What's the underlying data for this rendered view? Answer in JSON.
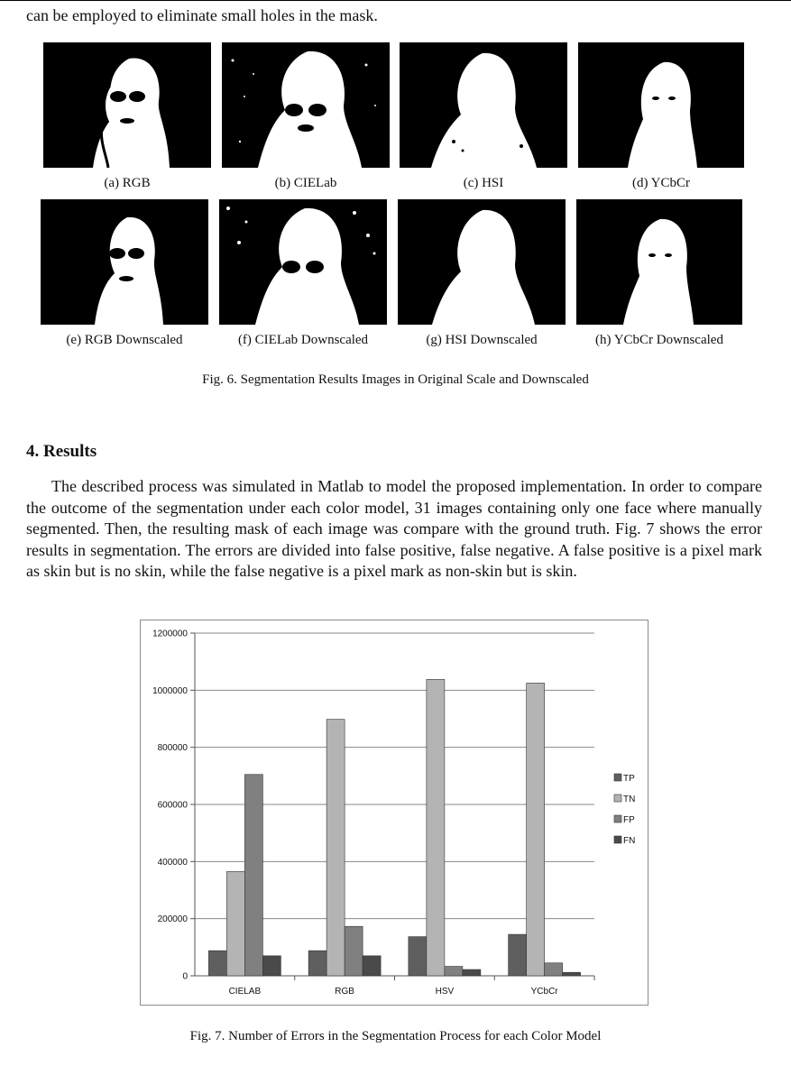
{
  "top_text": "can be employed to eliminate small holes in the mask.",
  "fig6": {
    "panels": [
      {
        "label": "(a) RGB"
      },
      {
        "label": "(b) CIELab"
      },
      {
        "label": "(c) HSI"
      },
      {
        "label": "(d) YCbCr"
      },
      {
        "label": "(e) RGB Downscaled"
      },
      {
        "label": "(f) CIELab Downscaled"
      },
      {
        "label": "(g) HSI Downscaled"
      },
      {
        "label": "(h) YCbCr Downscaled"
      }
    ],
    "caption": "Fig. 6. Segmentation Results Images in Original Scale and Downscaled"
  },
  "section": {
    "heading": "4. Results",
    "paragraph": "The described process was simulated in Matlab to model the proposed implementation. In order to compare the outcome of the segmentation under each color model, 31 images containing only one face where manually segmented. Then, the resulting mask of each image was compare with the ground truth. Fig. 7 shows the error results in segmentation. The errors are divided into false positive, false negative. A false positive is a pixel mark as skin but is no skin, while the false negative is a pixel mark as non-skin but is skin."
  },
  "fig7": {
    "caption": "Fig. 7. Number of Errors in the Segmentation Process for each Color Model"
  },
  "chart_data": {
    "type": "bar",
    "categories": [
      "CIELAB",
      "RGB",
      "HSV",
      "YCbCr"
    ],
    "series": [
      {
        "name": "TP",
        "color": "#5f5f5f",
        "values": [
          88000,
          88000,
          137000,
          145000
        ]
      },
      {
        "name": "TN",
        "color": "#b4b4b4",
        "values": [
          365000,
          898000,
          1038000,
          1025000
        ]
      },
      {
        "name": "FP",
        "color": "#808080",
        "values": [
          705000,
          173000,
          33000,
          45000
        ]
      },
      {
        "name": "FN",
        "color": "#4a4a4a",
        "values": [
          70000,
          70000,
          22000,
          12000
        ]
      }
    ],
    "yticks": [
      "0",
      "200000",
      "400000",
      "600000",
      "800000",
      "1000000",
      "1200000"
    ],
    "ylim": [
      0,
      1200000
    ],
    "grid": true,
    "legend": "right"
  }
}
